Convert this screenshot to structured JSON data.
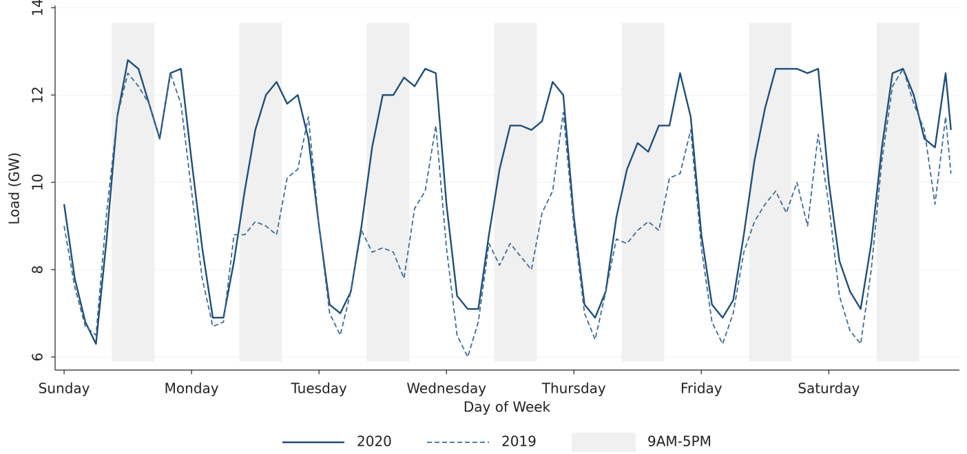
{
  "chart_data": {
    "type": "line",
    "x_label": "Day of Week",
    "y_label": "Load (GW)",
    "x": [
      0,
      2,
      4,
      6,
      8,
      10,
      12,
      14,
      16,
      18,
      20,
      22,
      24,
      26,
      28,
      30,
      32,
      34,
      36,
      38,
      40,
      42,
      44,
      46,
      48,
      50,
      52,
      54,
      56,
      58,
      60,
      62,
      64,
      66,
      68,
      70,
      72,
      74,
      76,
      78,
      80,
      82,
      84,
      86,
      88,
      90,
      92,
      94,
      96,
      98,
      100,
      102,
      104,
      106,
      108,
      110,
      112,
      114,
      116,
      118,
      120,
      122,
      124,
      126,
      128,
      130,
      132,
      134,
      136,
      138,
      140,
      142,
      144,
      146,
      148,
      150,
      152,
      154,
      156,
      158,
      160,
      162,
      164,
      166,
      167
    ],
    "series": [
      {
        "name": "2020",
        "color": "#1f4e79",
        "style": "solid",
        "values": [
          9.5,
          7.8,
          6.8,
          6.3,
          8.7,
          11.5,
          12.8,
          12.6,
          11.8,
          11.0,
          12.5,
          12.6,
          10.5,
          8.5,
          6.9,
          6.9,
          8.2,
          9.8,
          11.2,
          12.0,
          12.3,
          11.8,
          12.0,
          11.0,
          9.0,
          7.2,
          7.0,
          7.5,
          9.0,
          10.8,
          12.0,
          12.0,
          12.4,
          12.2,
          12.6,
          12.5,
          9.5,
          7.4,
          7.1,
          7.1,
          8.8,
          10.3,
          11.3,
          11.3,
          11.2,
          11.4,
          12.3,
          12.0,
          9.2,
          7.2,
          6.9,
          7.5,
          9.2,
          10.3,
          10.9,
          10.7,
          11.3,
          11.3,
          12.5,
          11.5,
          8.8,
          7.2,
          6.9,
          7.3,
          8.8,
          10.5,
          11.7,
          12.6,
          12.6,
          12.6,
          12.5,
          12.6,
          10.0,
          8.2,
          7.5,
          7.1,
          8.6,
          10.8,
          12.5,
          12.6,
          12.0,
          11.0,
          10.8,
          12.5,
          11.2
        ]
      },
      {
        "name": "2019",
        "color": "#3d6a96",
        "style": "dashed",
        "values": [
          9.0,
          7.6,
          6.7,
          6.5,
          9.3,
          11.5,
          12.5,
          12.2,
          11.8,
          11.0,
          12.5,
          11.8,
          9.8,
          7.8,
          6.7,
          6.8,
          8.8,
          8.8,
          9.1,
          9.0,
          8.8,
          10.1,
          10.3,
          11.5,
          9.0,
          7.0,
          6.5,
          7.5,
          8.9,
          8.4,
          8.5,
          8.4,
          7.8,
          9.4,
          9.8,
          11.3,
          8.5,
          6.5,
          6.0,
          6.8,
          8.6,
          8.1,
          8.6,
          8.3,
          8.0,
          9.3,
          9.8,
          11.6,
          9.0,
          7.0,
          6.4,
          7.5,
          8.7,
          8.6,
          8.9,
          9.1,
          8.9,
          10.1,
          10.2,
          11.2,
          8.5,
          6.8,
          6.3,
          7.0,
          8.4,
          9.1,
          9.5,
          9.8,
          9.3,
          10.0,
          9.0,
          11.1,
          9.5,
          7.4,
          6.6,
          6.3,
          8.0,
          10.5,
          12.2,
          12.6,
          11.8,
          11.2,
          9.5,
          11.5,
          10.2
        ]
      }
    ],
    "shading": {
      "name": "9AM-5PM",
      "color": "#f0f0f0",
      "ranges": [
        [
          9,
          17
        ],
        [
          33,
          41
        ],
        [
          57,
          65
        ],
        [
          81,
          89
        ],
        [
          105,
          113
        ],
        [
          129,
          137
        ],
        [
          153,
          161
        ]
      ],
      "ylim": [
        5.9,
        13.65
      ]
    },
    "xlim": [
      -1.7,
      168.6
    ],
    "ylim": [
      5.7,
      14.05
    ],
    "xticks": [
      {
        "value": 0,
        "label": "Sunday"
      },
      {
        "value": 24,
        "label": "Monday"
      },
      {
        "value": 48,
        "label": "Tuesday"
      },
      {
        "value": 72,
        "label": "Wednesday"
      },
      {
        "value": 96,
        "label": "Thursday"
      },
      {
        "value": 120,
        "label": "Friday"
      },
      {
        "value": 144,
        "label": "Saturday"
      }
    ],
    "yticks": [
      6,
      8,
      10,
      12,
      14
    ],
    "grid": true
  }
}
